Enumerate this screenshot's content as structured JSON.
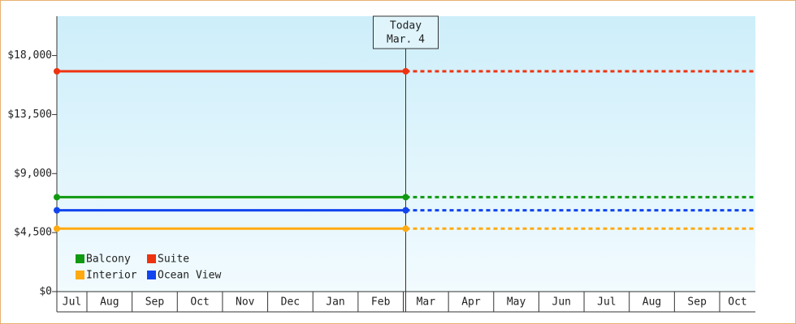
{
  "chart_data": {
    "type": "line",
    "categories": [
      "Jul",
      "Aug",
      "Sep",
      "Oct",
      "Nov",
      "Dec",
      "Jan",
      "Feb",
      "Mar",
      "Apr",
      "May",
      "Jun",
      "Jul",
      "Aug",
      "Sep",
      "Oct"
    ],
    "series": [
      {
        "name": "Balcony",
        "color": "#119911",
        "value": 7200
      },
      {
        "name": "Suite",
        "color": "#ee3311",
        "value": 16800
      },
      {
        "name": "Interior",
        "color": "#ffaa11",
        "value": 4800
      },
      {
        "name": "Ocean View",
        "color": "#1144ee",
        "value": 6200
      }
    ],
    "annotation": {
      "lines": [
        "Today",
        "Mar. 4"
      ],
      "category": 8
    },
    "ylim": [
      0,
      21000
    ],
    "yticks": [
      {
        "value": 0,
        "label": "$0"
      },
      {
        "value": 4500,
        "label": "$4,500"
      },
      {
        "value": 9000,
        "label": "$9,000"
      },
      {
        "value": 13500,
        "label": "$13,500"
      },
      {
        "value": 18000,
        "label": "$18,000"
      }
    ],
    "legend": "bottom-left"
  }
}
